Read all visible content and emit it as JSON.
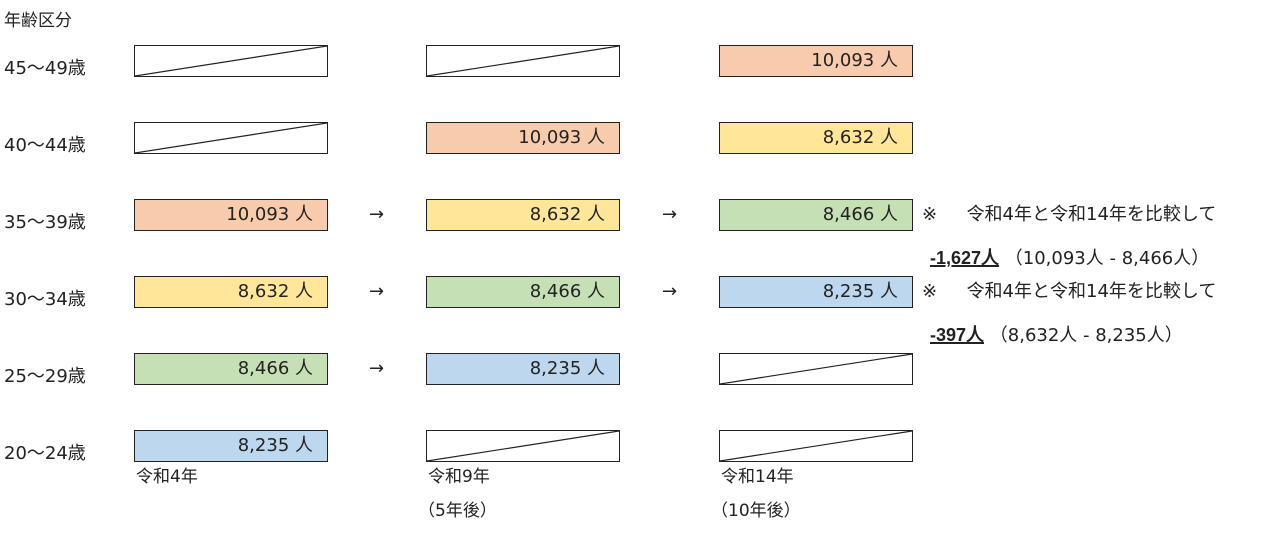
{
  "heading": "年齢区分",
  "colors": {
    "orange": "#f8cbad",
    "yellow": "#ffe699",
    "green": "#c5e0b4",
    "blue": "#bdd7ee"
  },
  "age_groups": [
    "45～49歳",
    "40～44歳",
    "35～39歳",
    "30～34歳",
    "25～29歳",
    "20～24歳"
  ],
  "columns": [
    {
      "label": "令和4年",
      "sublabel": ""
    },
    {
      "label": "令和9年",
      "sublabel": "（5年後）"
    },
    {
      "label": "令和14年",
      "sublabel": "（10年後）"
    }
  ],
  "cells": [
    [
      {
        "text": "",
        "color": "none"
      },
      {
        "text": "",
        "color": "none"
      },
      {
        "text": "10,093 人",
        "color": "orange"
      }
    ],
    [
      {
        "text": "",
        "color": "none"
      },
      {
        "text": "10,093 人",
        "color": "orange"
      },
      {
        "text": "8,632 人",
        "color": "yellow"
      }
    ],
    [
      {
        "text": "10,093 人",
        "color": "orange"
      },
      {
        "text": "8,632 人",
        "color": "yellow"
      },
      {
        "text": "8,466 人",
        "color": "green"
      }
    ],
    [
      {
        "text": "8,632 人",
        "color": "yellow"
      },
      {
        "text": "8,466 人",
        "color": "green"
      },
      {
        "text": "8,235 人",
        "color": "blue"
      }
    ],
    [
      {
        "text": "8,466 人",
        "color": "green"
      },
      {
        "text": "8,235 人",
        "color": "blue"
      },
      {
        "text": "",
        "color": "none"
      }
    ],
    [
      {
        "text": "8,235 人",
        "color": "blue"
      },
      {
        "text": "",
        "color": "none"
      },
      {
        "text": "",
        "color": "none"
      }
    ]
  ],
  "arrow": "→",
  "notes": [
    {
      "mark": "※",
      "text": "令和4年と令和14年を比較して",
      "diff": "-1,627人",
      "detail": "（10,093人 - 8,466人）"
    },
    {
      "mark": "※",
      "text": "令和4年と令和14年を比較して",
      "diff": "-397人",
      "detail": "（8,632人 - 8,235人）"
    }
  ]
}
